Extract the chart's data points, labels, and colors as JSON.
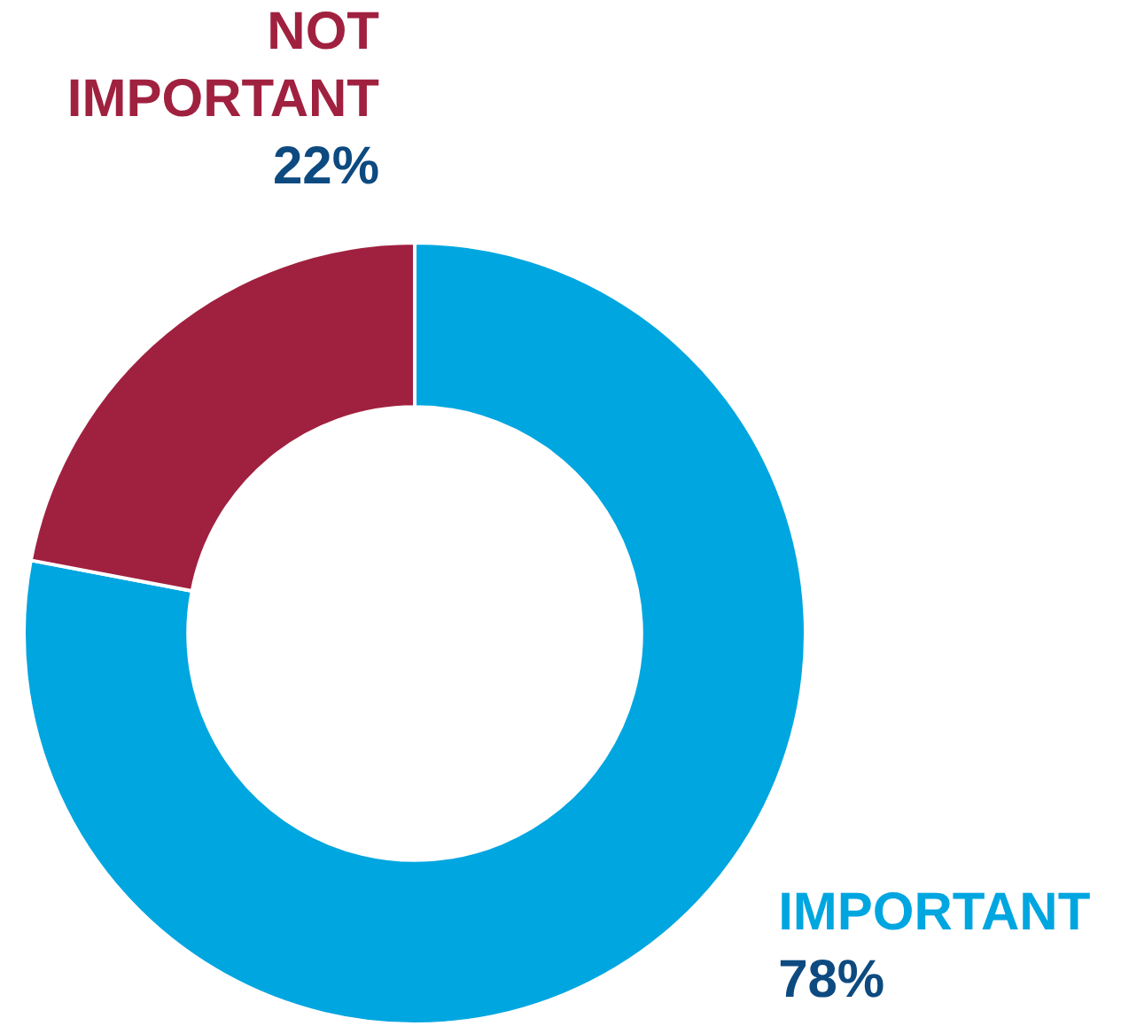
{
  "chart_data": {
    "type": "donut",
    "categories": [
      "IMPORTANT",
      "NOT IMPORTANT"
    ],
    "values": [
      78,
      22
    ],
    "colors": [
      "#00a6e0",
      "#a0213f"
    ],
    "value_labels": [
      "78%",
      "22%"
    ],
    "legend": false
  }
}
